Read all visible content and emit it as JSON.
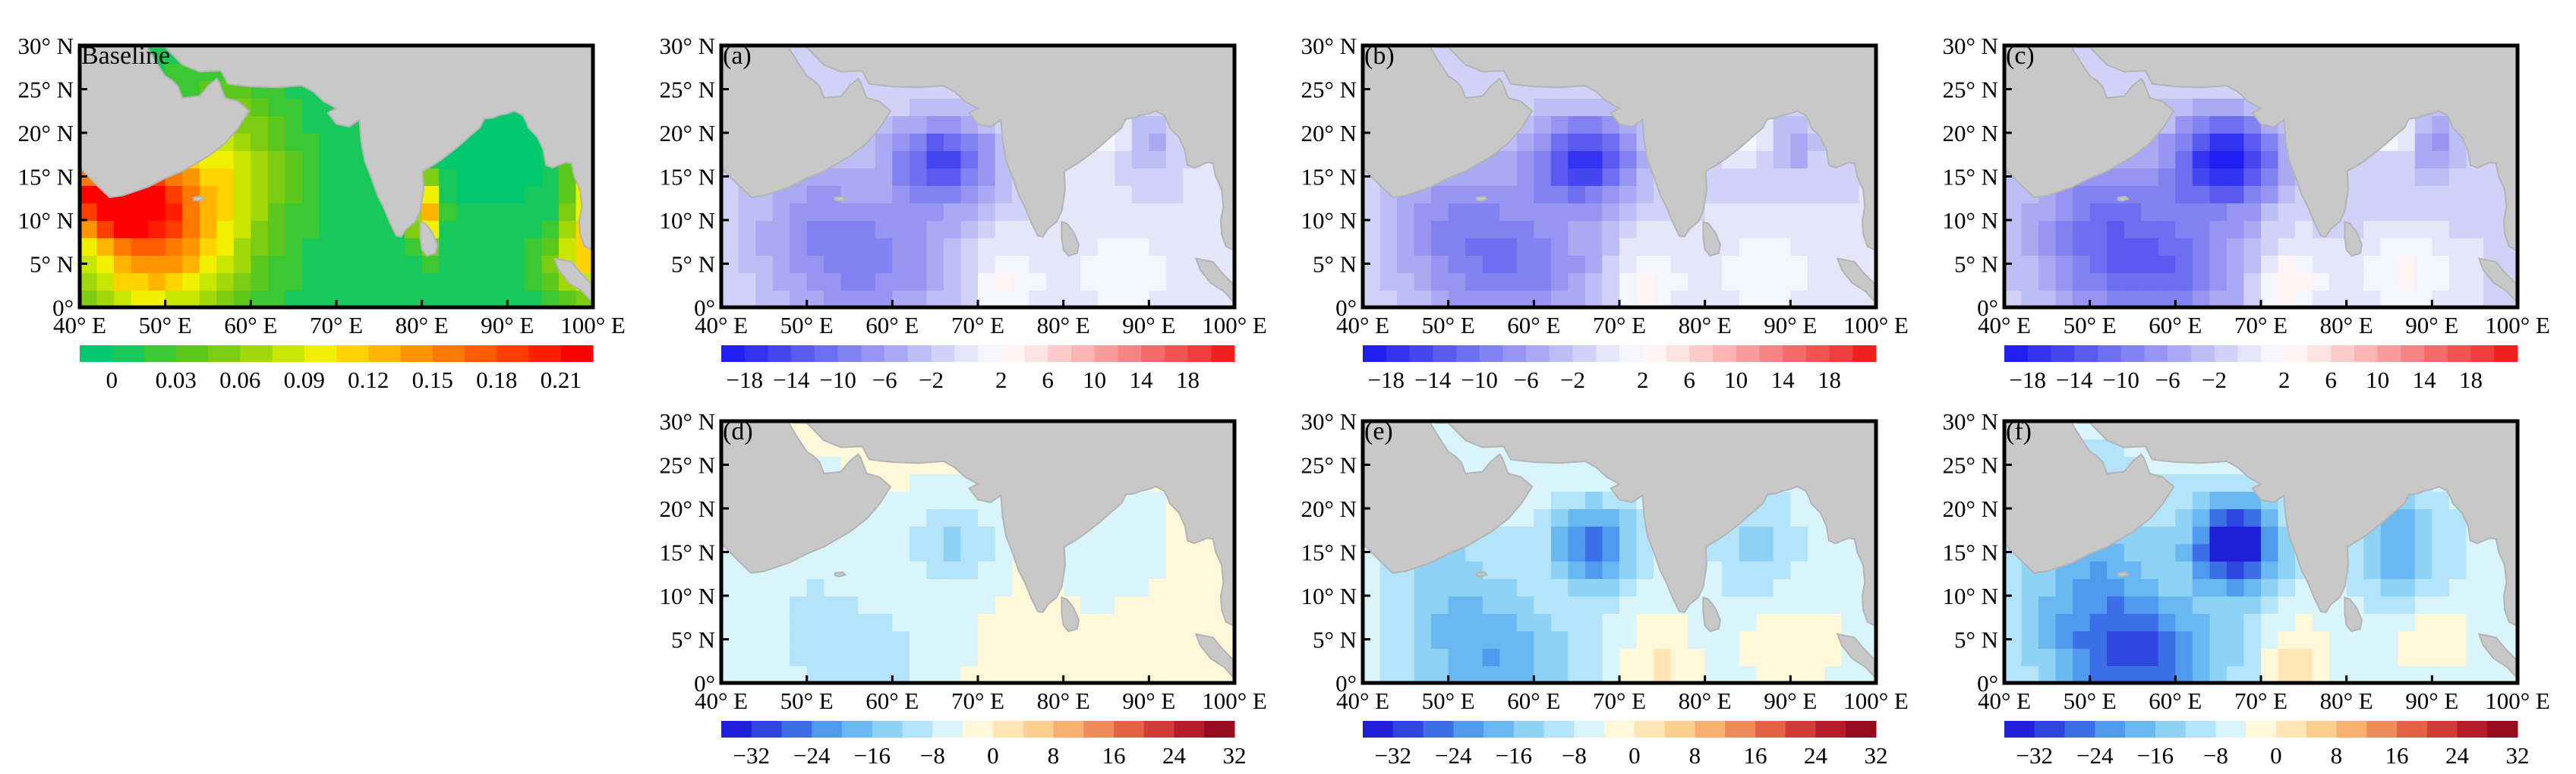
{
  "axis_labels": {
    "x_ticks": [
      "40° E",
      "50° E",
      "60° E",
      "70° E",
      "80° E",
      "90° E",
      "100° E"
    ],
    "y_ticks": [
      "0°",
      "5° N",
      "10° N",
      "15° N",
      "20° N",
      "25° N",
      "30° N"
    ]
  },
  "panels": [
    {
      "id": "baseline",
      "label": "Baseline",
      "scheme": "baseline",
      "amp": 0
    },
    {
      "id": "a",
      "label": "(a)",
      "scheme": "diff",
      "amp": 0.9
    },
    {
      "id": "b",
      "label": "(b)",
      "scheme": "diff",
      "amp": 1.0
    },
    {
      "id": "c",
      "label": "(c)",
      "scheme": "diff",
      "amp": 1.2
    },
    {
      "id": "d",
      "label": "(d)",
      "scheme": "diff2",
      "amp": 0.35
    },
    {
      "id": "e",
      "label": "(e)",
      "scheme": "diff2",
      "amp": 0.75
    },
    {
      "id": "f",
      "label": "(f)",
      "scheme": "diff2",
      "amp": 1.15
    }
  ],
  "colorbars": {
    "baseline": {
      "ticks": [
        "0",
        "0.03",
        "0.06",
        "0.09",
        "0.12",
        "0.15",
        "0.18",
        "0.21"
      ],
      "colors": [
        "#00c86e",
        "#18c85a",
        "#3cc832",
        "#5cc81e",
        "#7ccc14",
        "#a0d80a",
        "#c8e600",
        "#f0f000",
        "#ffd200",
        "#ffb400",
        "#ff9600",
        "#ff7800",
        "#ff5a00",
        "#ff3c00",
        "#ff1e00",
        "#ff0000"
      ]
    },
    "diff": {
      "ticks": [
        "−18",
        "−14",
        "−10",
        "−6",
        "−2",
        "2",
        "6",
        "10",
        "14",
        "18"
      ],
      "colors": [
        "#1e1ef0",
        "#3232f0",
        "#4646f0",
        "#5a5af0",
        "#6e6ef0",
        "#8282f2",
        "#9696f2",
        "#aaaaf4",
        "#bebef6",
        "#d2d2f8",
        "#e6e6fa",
        "#f5f5ff",
        "#fff5f5",
        "#fde2e2",
        "#fccccc",
        "#fab4b4",
        "#f89c9c",
        "#f68484",
        "#f46c6c",
        "#f25454",
        "#f03c3c",
        "#f02020"
      ]
    },
    "diff2": {
      "ticks": [
        "−32",
        "−24",
        "−16",
        "−8",
        "0",
        "8",
        "16",
        "24",
        "32"
      ],
      "colors": [
        "#2020d8",
        "#2e46e0",
        "#3c6ee8",
        "#509aee",
        "#6ab8f2",
        "#8ed2f6",
        "#b4e4fa",
        "#daf4fc",
        "#fff8d8",
        "#ffe6b4",
        "#fcd090",
        "#f8b070",
        "#f08c5a",
        "#e46248",
        "#d03c38",
        "#b41c28",
        "#960a1e"
      ]
    }
  }
}
